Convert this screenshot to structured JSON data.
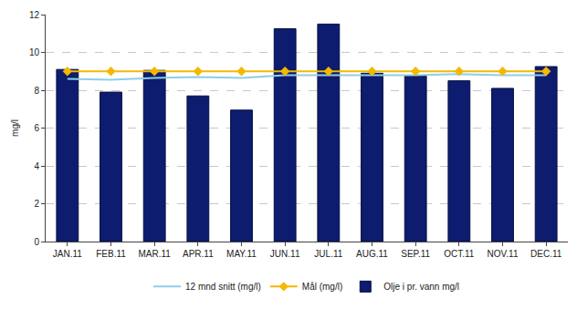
{
  "chart_data": {
    "type": "bar",
    "categories": [
      "JAN.11",
      "FEB.11",
      "MAR.11",
      "APR.11",
      "MAY.11",
      "JUN.11",
      "JUL.11",
      "AUG.11",
      "SEP.11",
      "OCT.11",
      "NOV.11",
      "DEC.11"
    ],
    "y_label": "mg/l",
    "series": [
      {
        "name": "12 mnd snitt (mg/l)",
        "type": "line",
        "color": "#8ccfe8",
        "line_style": "solid",
        "values": [
          8.6,
          8.55,
          8.65,
          8.7,
          8.65,
          8.8,
          8.8,
          8.8,
          8.8,
          8.85,
          8.8,
          8.8
        ]
      },
      {
        "name": "Mål (mg/l)",
        "type": "line",
        "color": "#f5b800",
        "marker": "diamond",
        "line_style": "solid",
        "values": [
          9,
          9,
          9,
          9,
          9,
          9,
          9,
          9,
          9,
          9,
          9,
          9
        ]
      },
      {
        "name": "Olje i pr. vann mg/l",
        "type": "bar",
        "color": "#0d1c6e",
        "values": [
          9.1,
          7.9,
          9.05,
          7.7,
          6.95,
          11.25,
          11.5,
          8.9,
          8.75,
          8.5,
          8.1,
          9.25
        ]
      }
    ],
    "ylim": [
      0,
      12
    ],
    "yticks": [
      0,
      2,
      4,
      6,
      8,
      10,
      12
    ],
    "grid": true,
    "legend": "bottom"
  }
}
